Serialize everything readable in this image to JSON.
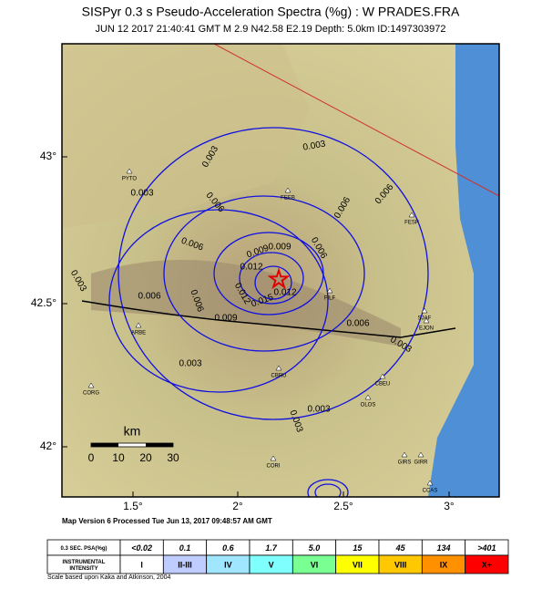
{
  "title": "SISPyr 0.3 s Pseudo-Acceleration Spectra (%g) : W PRADES.FRA",
  "subtitle": "JUN 12 2017 21:40:41  GMT   M 2.9   N42.58 E2.19   Depth: 5.0km   ID:1497303972",
  "map": {
    "lat_labels": [
      "43°",
      "42.5°",
      "42°"
    ],
    "lon_labels": [
      "1.5°",
      "2°",
      "2.5°",
      "3°"
    ],
    "contour_labels": [
      "0.003",
      "0.003",
      "0.003",
      "0.006",
      "0.006",
      "0.006",
      "0.006",
      "0.009",
      "0.009",
      "0.012",
      "0.012",
      "0.015",
      "0.012",
      "0.009",
      "0.006",
      "0.006",
      "0.003",
      "0.003",
      "0.003",
      "0.006",
      "0.003",
      "0.003",
      "0.006"
    ],
    "stations": [
      "FEEB",
      "FESP",
      "SJAF",
      "EJON",
      "CBRU",
      "CBEU",
      "OLOS",
      "CORG",
      "CORI",
      "GIRS",
      "GIRR",
      "CCAS",
      "ARBE",
      "FILF",
      "PYTO"
    ],
    "scale": {
      "unit": "km",
      "ticks": [
        "0",
        "10",
        "20",
        "30"
      ]
    }
  },
  "footer": "Map Version 6 Processed Tue Jun 13, 2017 09:48:57 AM GMT",
  "legend": {
    "rows": [
      [
        "0.3 SEC. PSA(%g)",
        "<0.02",
        "0.1",
        "0.6",
        "1.7",
        "5.0",
        "15",
        "45",
        "134",
        ">401"
      ],
      [
        "INSTRUMENTAL INTENSITY",
        "I",
        "II-III",
        "IV",
        "V",
        "VI",
        "VII",
        "VIII",
        "IX",
        "X+"
      ]
    ],
    "colors": [
      "#ffffff",
      "#ffffff",
      "#bfccff",
      "#a0e6ff",
      "#80ffff",
      "#7aff93",
      "#ffff00",
      "#ffc800",
      "#ff9100",
      "#ff0000"
    ],
    "note": "Scale based upon Kaka and Atkinson, 2004"
  }
}
